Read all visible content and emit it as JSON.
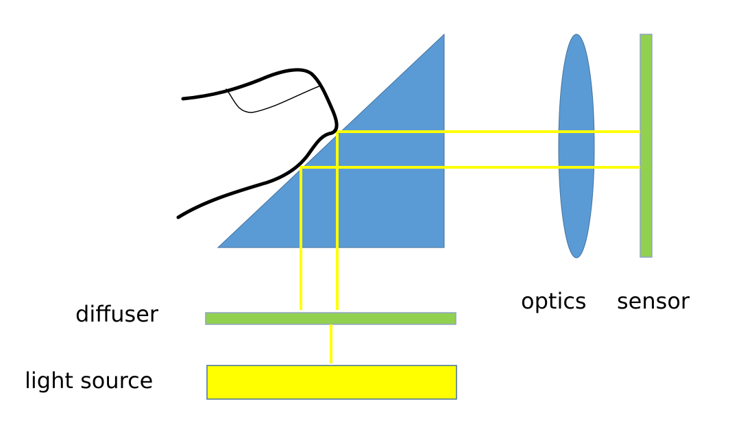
{
  "labels": {
    "diffuser": "diffuser",
    "light_source": "light source",
    "optics": "optics",
    "sensor": "sensor"
  },
  "colors": {
    "prism": "#5b9bd5",
    "lens": "#5b9bd5",
    "sensor": "#92d050",
    "diffuser": "#92d050",
    "light_source": "#ffff00",
    "light_ray": "#ffff00",
    "finger_outline": "#000000",
    "outline": "#41719c"
  },
  "icons": {
    "finger": "finger-icon"
  }
}
